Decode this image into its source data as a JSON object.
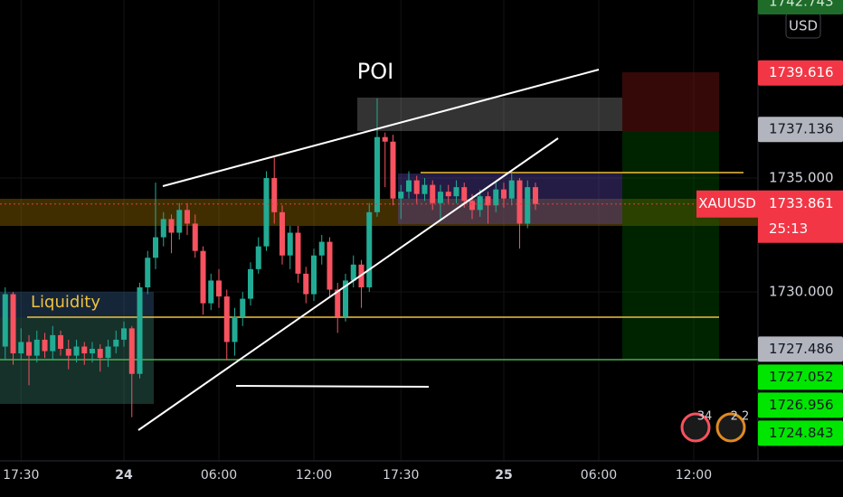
{
  "chart_data": {
    "type": "candlestick",
    "symbol": "XAUUSD",
    "currency": "USD",
    "countdown": "25:13",
    "poi_label": "POI",
    "liquidity_label": "Liquidity",
    "up_color": "#22ab94",
    "down_color": "#f7525f",
    "xlim": [
      -7.83,
      40.06
    ],
    "ylim": [
      1722.58,
      1742.82
    ],
    "xticks": [
      {
        "value": -6.5,
        "label": "17:30"
      },
      {
        "value": 0,
        "label": "24"
      },
      {
        "value": 6,
        "label": "06:00"
      },
      {
        "value": 12,
        "label": "12:00"
      },
      {
        "value": 17.5,
        "label": "17:30"
      },
      {
        "value": 24,
        "label": "25"
      },
      {
        "value": 30,
        "label": "06:00"
      },
      {
        "value": 36,
        "label": "12:00"
      }
    ],
    "yticks": [
      {
        "value": 1735,
        "label": "1735.000"
      },
      {
        "value": 1730,
        "label": "1730.000"
      }
    ],
    "x": [
      -7.5,
      -7,
      -6.5,
      -6,
      -5.5,
      -5,
      -4.5,
      -4,
      -3.5,
      -3,
      -2.5,
      -2,
      -1.5,
      -1,
      -0.5,
      0,
      0.5,
      1,
      1.5,
      2,
      2.5,
      3,
      3.5,
      4,
      4.5,
      5,
      5.5,
      6,
      6.5,
      7,
      7.5,
      8,
      8.5,
      9,
      9.5,
      10,
      10.5,
      11,
      11.5,
      12,
      12.5,
      13,
      13.5,
      14,
      14.5,
      15,
      15.5,
      16,
      16.5,
      17,
      17.5,
      18,
      18.5,
      19,
      19.5,
      20,
      20.5,
      21,
      21.5,
      22,
      22.5,
      23,
      23.5,
      24,
      24.5,
      25,
      25.5,
      26
    ],
    "open": [
      1727.6,
      1729.9,
      1727.3,
      1727.8,
      1727.2,
      1727.9,
      1727.4,
      1728.1,
      1727.5,
      1727.2,
      1727.6,
      1727.3,
      1727.5,
      1727.1,
      1727.6,
      1727.9,
      1728.4,
      1726.4,
      1730.2,
      1731.5,
      1732.4,
      1733.2,
      1732.6,
      1733.6,
      1733.0,
      1731.8,
      1729.5,
      1730.5,
      1729.8,
      1727.8,
      1728.9,
      1729.7,
      1731.0,
      1732.0,
      1735.0,
      1733.5,
      1731.6,
      1732.6,
      1730.8,
      1729.9,
      1731.6,
      1732.2,
      1730.1,
      1728.9,
      1730.5,
      1731.2,
      1730.2,
      1733.5,
      1736.8,
      1736.6,
      1734.1,
      1734.4,
      1734.9,
      1734.3,
      1734.7,
      1733.9,
      1734.4,
      1734.2,
      1734.6,
      1734.0,
      1733.6,
      1734.2,
      1733.8,
      1734.5,
      1734.1,
      1734.9,
      1733.0,
      1734.6
    ],
    "high": [
      1730.2,
      1730.0,
      1728.4,
      1728.1,
      1728.3,
      1728.2,
      1728.5,
      1728.3,
      1727.9,
      1727.9,
      1727.8,
      1727.8,
      1727.7,
      1727.9,
      1728.3,
      1728.7,
      1728.5,
      1730.4,
      1731.8,
      1734.8,
      1733.5,
      1733.4,
      1733.9,
      1733.9,
      1733.4,
      1732.0,
      1730.8,
      1731.0,
      1730.1,
      1729.3,
      1730.0,
      1731.3,
      1732.4,
      1735.3,
      1735.9,
      1733.8,
      1732.9,
      1732.9,
      1731.1,
      1731.9,
      1732.5,
      1732.4,
      1730.4,
      1730.8,
      1731.6,
      1731.4,
      1733.9,
      1738.5,
      1737.0,
      1736.9,
      1734.7,
      1735.3,
      1735.1,
      1735.0,
      1734.9,
      1734.7,
      1734.7,
      1734.9,
      1734.8,
      1734.3,
      1734.5,
      1734.4,
      1734.8,
      1734.8,
      1735.2,
      1735.0,
      1734.9,
      1734.8
    ],
    "low": [
      1727.0,
      1726.8,
      1727.0,
      1725.9,
      1726.9,
      1727.1,
      1727.0,
      1727.2,
      1726.6,
      1726.9,
      1726.8,
      1726.9,
      1726.5,
      1726.7,
      1727.3,
      1727.6,
      1724.5,
      1726.2,
      1729.9,
      1731.0,
      1732.0,
      1731.7,
      1732.3,
      1732.5,
      1731.5,
      1729.0,
      1729.2,
      1729.3,
      1727.0,
      1727.2,
      1728.5,
      1729.4,
      1730.8,
      1731.8,
      1733.0,
      1731.2,
      1731.0,
      1730.4,
      1729.5,
      1729.6,
      1731.2,
      1729.8,
      1728.2,
      1728.7,
      1730.2,
      1729.3,
      1730.0,
      1733.3,
      1734.6,
      1733.8,
      1733.2,
      1734.1,
      1733.9,
      1734.0,
      1733.6,
      1733.2,
      1733.9,
      1733.9,
      1733.7,
      1733.2,
      1733.3,
      1733.0,
      1733.5,
      1733.7,
      1733.8,
      1731.9,
      1732.8,
      1733.6
    ],
    "close": [
      1729.9,
      1727.3,
      1727.8,
      1727.2,
      1727.9,
      1727.4,
      1728.1,
      1727.5,
      1727.2,
      1727.6,
      1727.3,
      1727.5,
      1727.1,
      1727.6,
      1727.9,
      1728.4,
      1726.4,
      1730.2,
      1731.5,
      1732.4,
      1733.2,
      1732.6,
      1733.6,
      1733.0,
      1731.8,
      1729.5,
      1730.5,
      1729.8,
      1727.8,
      1728.9,
      1729.7,
      1731.0,
      1732.0,
      1735.0,
      1733.5,
      1731.6,
      1732.6,
      1730.8,
      1729.9,
      1731.6,
      1732.2,
      1730.1,
      1728.9,
      1730.5,
      1731.2,
      1730.2,
      1733.5,
      1736.8,
      1736.6,
      1734.1,
      1734.4,
      1734.9,
      1734.3,
      1734.7,
      1733.9,
      1734.4,
      1734.2,
      1734.6,
      1734.0,
      1733.6,
      1734.2,
      1733.8,
      1734.5,
      1734.1,
      1734.9,
      1733.0,
      1734.6,
      1733.86
    ],
    "current_price": {
      "value": 1733.861,
      "label": "1733.861",
      "color": "#f23645"
    },
    "price_tags": [
      {
        "value": 1742.743,
        "label": "1742.743",
        "color": "#1e6b2a",
        "text_color": "#cfe8cf"
      },
      {
        "value": 1739.616,
        "label": "1739.616",
        "color": "#f23645",
        "text_color": "#ffffff"
      },
      {
        "value": 1737.136,
        "label": "1737.136",
        "color": "#b2b5be",
        "text_color": "#131722"
      },
      {
        "value": 1727.486,
        "label": "1727.486",
        "color": "#b2b5be",
        "text_color": "#131722"
      },
      {
        "value": 1727.052,
        "label": "1727.052",
        "color": "#00e600",
        "text_color": "#131722"
      },
      {
        "value": 1726.956,
        "label": "1726.956",
        "color": "#00e600",
        "text_color": "#131722"
      },
      {
        "value": 1724.843,
        "label": "1724.843",
        "color": "#00e600",
        "text_color": "#131722"
      }
    ],
    "events": [
      "34",
      "2 2"
    ]
  }
}
